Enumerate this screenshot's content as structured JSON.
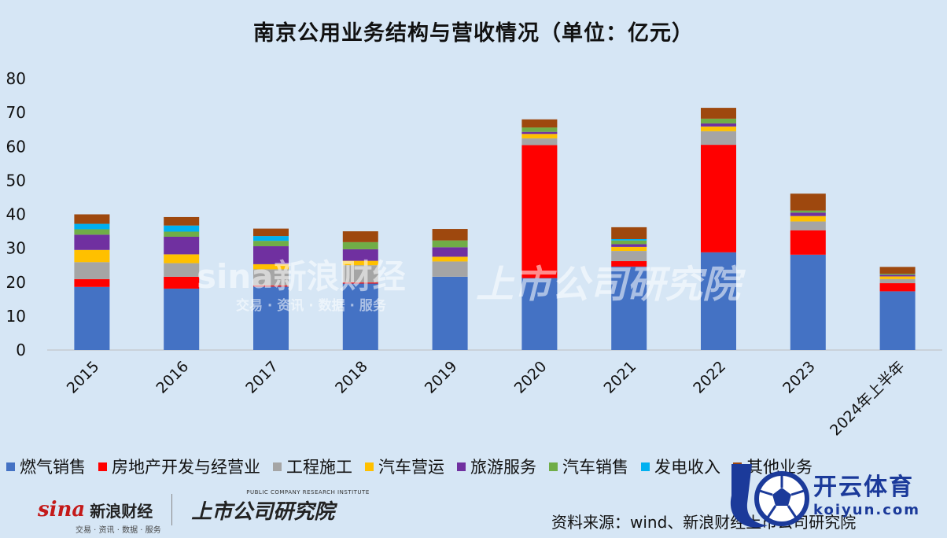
{
  "chart_data": {
    "type": "bar",
    "stacked": true,
    "title": "南京公用业务结构与营收情况（单位：亿元）",
    "categories": [
      "2015",
      "2016",
      "2017",
      "2018",
      "2019",
      "2020",
      "2021",
      "2022",
      "2023",
      "2024年上半年"
    ],
    "ylim": [
      0,
      80
    ],
    "yticks": [
      0,
      10,
      20,
      30,
      40,
      50,
      60,
      70,
      80
    ],
    "grid": false,
    "legend_position": "bottom",
    "series": [
      {
        "name": "燃气销售",
        "color": "#4472c4",
        "values": [
          18.6,
          18.1,
          18.7,
          19.6,
          21.6,
          21.2,
          24.6,
          28.8,
          28.1,
          17.3
        ]
      },
      {
        "name": "房地产开发与经营业",
        "color": "#ff0000",
        "values": [
          2.3,
          3.5,
          0.3,
          0.3,
          0,
          39.2,
          1.6,
          31.7,
          7.2,
          2.4
        ]
      },
      {
        "name": "工程施工",
        "color": "#a5a5a5",
        "values": [
          5.0,
          4.0,
          4.8,
          5.1,
          4.5,
          2.0,
          3.0,
          4.0,
          2.6,
          1.2
        ]
      },
      {
        "name": "汽车营运",
        "color": "#ffc000",
        "values": [
          3.6,
          2.6,
          1.5,
          1.3,
          1.4,
          1.3,
          1.2,
          1.4,
          1.6,
          0.8
        ]
      },
      {
        "name": "旅游服务",
        "color": "#7030a0",
        "values": [
          4.5,
          5.2,
          5.3,
          3.4,
          2.8,
          0.6,
          0.8,
          0.9,
          1.0,
          0.5
        ]
      },
      {
        "name": "汽车销售",
        "color": "#70ad47",
        "values": [
          1.6,
          1.5,
          1.6,
          2.1,
          2.0,
          1.3,
          1.1,
          1.4,
          0.6,
          0.3
        ]
      },
      {
        "name": "发电收入",
        "color": "#00b0f0",
        "values": [
          1.6,
          1.8,
          1.4,
          0,
          0,
          0,
          0.4,
          0,
          0,
          0
        ]
      },
      {
        "name": "其他业务",
        "color": "#9e480e",
        "values": [
          2.8,
          2.5,
          2.2,
          3.2,
          3.4,
          2.4,
          3.5,
          3.2,
          5.0,
          2.0
        ]
      }
    ]
  },
  "watermarks": {
    "sina_large": "sina新浪财经",
    "sina_large_sub": "交易 · 资讯 · 数据 · 服务",
    "institute_large": "上市公司研究院"
  },
  "footer": {
    "sina_logo_text": "sina",
    "sina_name": "新浪财经",
    "sina_tagline": "交易 · 资讯 · 数据 · 服务",
    "institute_name": "上市公司研究院",
    "institute_en": "PUBLIC COMPANY RESEARCH INSTITUTE",
    "source": "资料来源：wind、新浪财经上市公司研究院"
  },
  "brand_badge": {
    "name": "开云体育",
    "domain": "koiyun.com"
  }
}
